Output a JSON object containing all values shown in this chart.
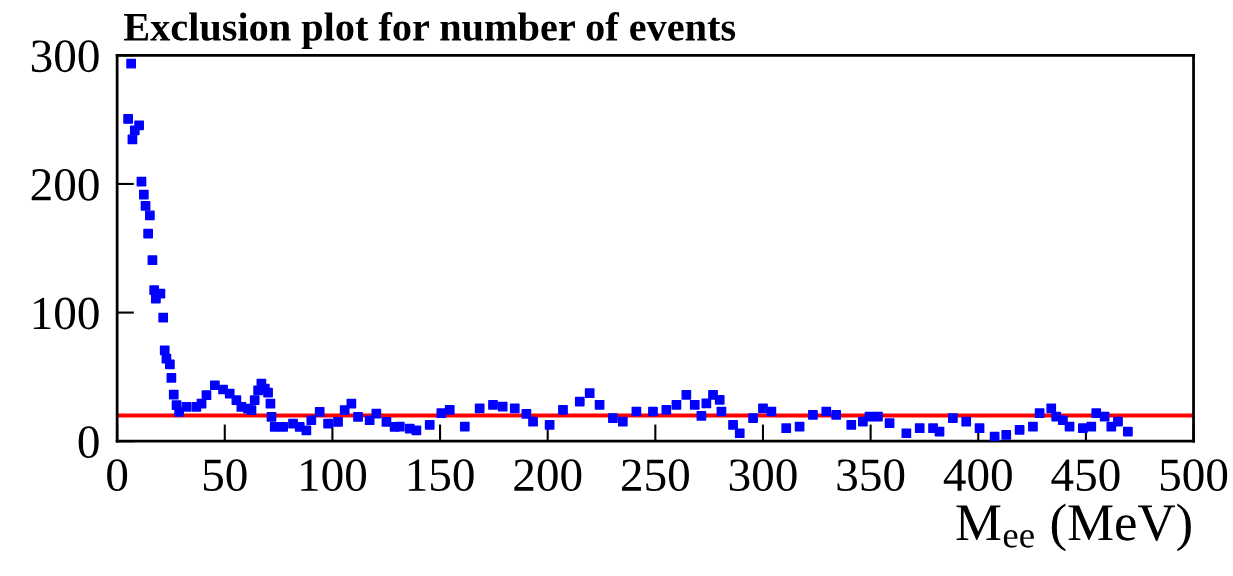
{
  "chart_data": {
    "type": "scatter",
    "title": "Exclusion plot for number of events",
    "xlabel": "M$_{ee}$ (MeV)",
    "x": [
      5.1,
      6.5,
      7.1,
      8.2,
      10.2,
      11.3,
      12.4,
      13.2,
      14.4,
      15.2,
      16.4,
      17.2,
      18.0,
      20.1,
      21.4,
      22.1,
      22.9,
      24.5,
      25.2,
      26.3,
      27.6,
      28.8,
      32.2,
      36.8,
      39.2,
      41.5,
      45.4,
      49.2,
      52.3,
      55.4,
      57.7,
      60.8,
      62.4,
      63.9,
      65.5,
      67.0,
      68.6,
      70.1,
      71.2,
      71.7,
      73.2,
      77.1,
      81.7,
      84.8,
      87.9,
      90.2,
      94.1,
      98.0,
      102.6,
      105.7,
      108.8,
      111.9,
      117.3,
      120.4,
      125.1,
      128.9,
      131.3,
      135.9,
      139.0,
      145.2,
      150.6,
      154.5,
      161.5,
      168.4,
      174.6,
      179.1,
      184.7,
      190.1,
      193.2,
      200.9,
      207.1,
      214.9,
      219.5,
      224.1,
      230.3,
      234.9,
      241.2,
      248.9,
      255.1,
      259.8,
      264.4,
      268.3,
      271.4,
      273.7,
      276.8,
      279.9,
      280.7,
      286.1,
      289.2,
      295.4,
      300.0,
      303.9,
      310.8,
      317.0,
      323.2,
      329.4,
      334.0,
      341.0,
      346.4,
      349.5,
      353.4,
      358.8,
      366.6,
      372.8,
      379.0,
      382.0,
      388.2,
      394.4,
      400.6,
      407.6,
      413.0,
      419.2,
      425.4,
      428.5,
      433.9,
      436.2,
      439.3,
      442.4,
      448.6,
      452.5,
      454.8,
      458.7,
      461.8,
      464.9,
      469.5
    ],
    "series": [
      {
        "color": "#0000ff",
        "values": [
          250.5,
          293.5,
          234.7,
          241.7,
          245.6,
          201.8,
          191.7,
          182.9,
          161.4,
          175.6,
          140.7,
          117.4,
          110.9,
          114.8,
          96.1,
          70.7,
          64.2,
          59.8,
          49.2,
          36.3,
          28.0,
          22.8,
          26.7,
          26.7,
          29.3,
          35.8,
          43.5,
          40.2,
          37.0,
          31.9,
          26.7,
          25.4,
          24.1,
          31.9,
          39.6,
          44.8,
          40.9,
          37.8,
          29.3,
          18.9,
          11.1,
          11.1,
          13.7,
          11.1,
          8.5,
          16.3,
          22.8,
          13.7,
          15.0,
          24.1,
          29.3,
          18.9,
          16.3,
          21.5,
          15.0,
          11.1,
          11.4,
          9.8,
          8.5,
          12.7,
          21.8,
          24.4,
          11.4,
          25.6,
          28.2,
          26.9,
          25.6,
          21.2,
          15.3,
          12.7,
          24.4,
          30.8,
          37.3,
          28.2,
          17.9,
          15.3,
          23.1,
          23.1,
          24.4,
          28.2,
          36.0,
          28.2,
          19.7,
          29.5,
          36.0,
          32.1,
          23.1,
          12.7,
          6.2,
          17.9,
          25.6,
          23.1,
          10.1,
          11.4,
          20.5,
          23.1,
          20.5,
          12.7,
          15.3,
          19.2,
          19.2,
          14.0,
          6.2,
          10.1,
          10.1,
          7.5,
          17.9,
          15.3,
          10.1,
          3.6,
          4.9,
          8.8,
          11.4,
          21.8,
          25.6,
          19.2,
          16.3,
          11.4,
          10.1,
          11.4,
          21.8,
          19.2,
          11.4,
          15.3,
          7.5
        ]
      }
    ],
    "marker": "square",
    "xlim": [
      0,
      500
    ],
    "xticks": [
      0,
      50,
      100,
      150,
      200,
      250,
      300,
      350,
      400,
      450,
      500
    ],
    "ylim": [
      0,
      300
    ],
    "yticks": [
      0,
      100,
      200,
      300
    ],
    "ref_lines": [
      {
        "axis": "y",
        "value": 20,
        "color": "#ff0000",
        "line_style": "solid"
      }
    ],
    "grid": false,
    "legend": false
  }
}
